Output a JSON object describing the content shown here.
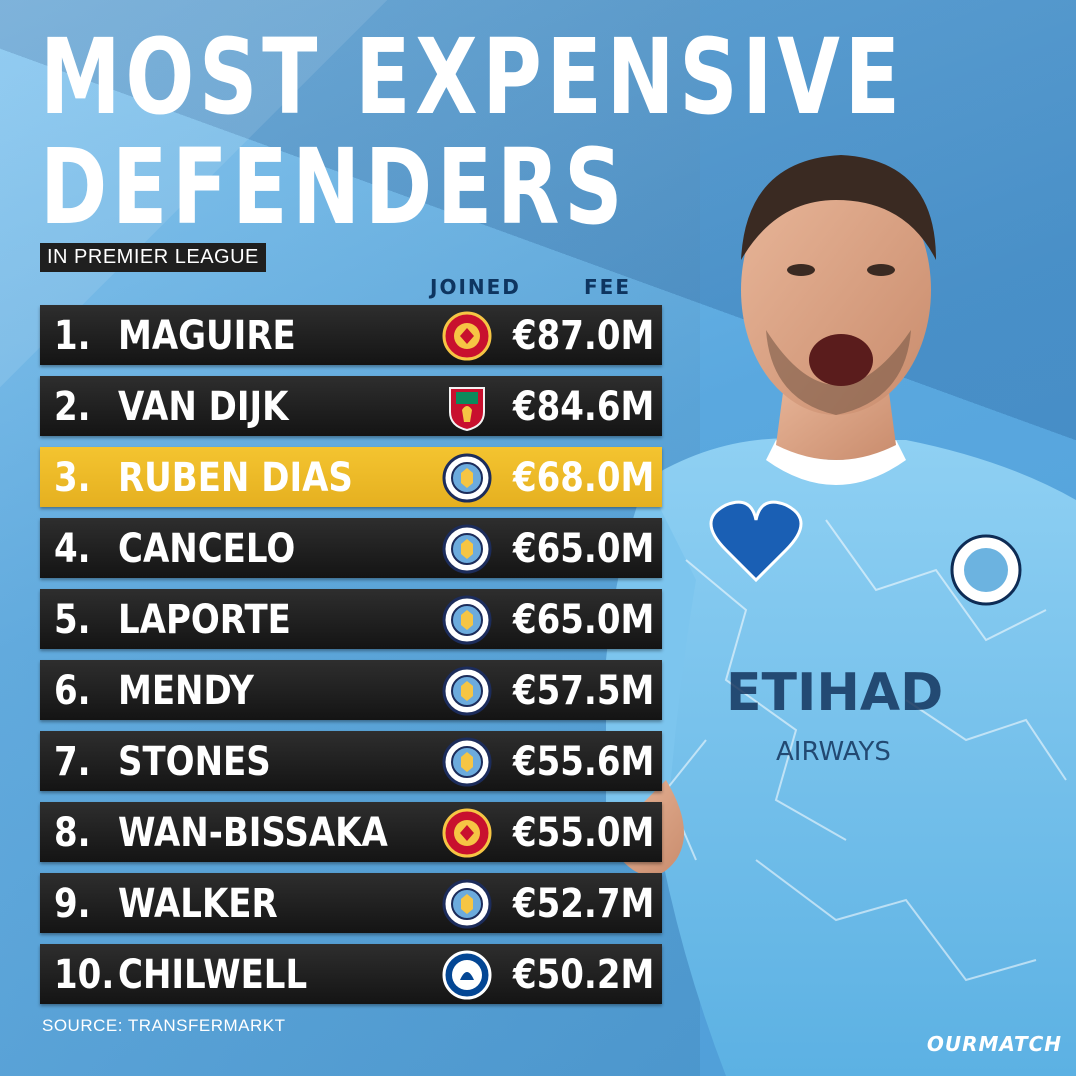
{
  "title": [
    "MOST EXPENSIVE",
    "DEFENDERS"
  ],
  "subtitle": "IN PREMIER LEAGUE",
  "columns": {
    "joined": "JOINED",
    "fee": "FEE"
  },
  "rows": [
    {
      "rank": "1.",
      "name": "MAGUIRE",
      "club": "manchester-united-crest",
      "fee": "€87.0M",
      "highlight": false
    },
    {
      "rank": "2.",
      "name": "VAN DIJK",
      "club": "liverpool-crest",
      "fee": "€84.6M",
      "highlight": false
    },
    {
      "rank": "3.",
      "name": "RUBEN DIAS",
      "club": "manchester-city-crest",
      "fee": "€68.0M",
      "highlight": true
    },
    {
      "rank": "4.",
      "name": "CANCELO",
      "club": "manchester-city-crest",
      "fee": "€65.0M",
      "highlight": false
    },
    {
      "rank": "5.",
      "name": "LAPORTE",
      "club": "manchester-city-crest",
      "fee": "€65.0M",
      "highlight": false
    },
    {
      "rank": "6.",
      "name": "MENDY",
      "club": "manchester-city-crest",
      "fee": "€57.5M",
      "highlight": false
    },
    {
      "rank": "7.",
      "name": "STONES",
      "club": "manchester-city-crest",
      "fee": "€55.6M",
      "highlight": false
    },
    {
      "rank": "8.",
      "name": "WAN-BISSAKA",
      "club": "manchester-united-crest",
      "fee": "€55.0M",
      "highlight": false
    },
    {
      "rank": "9.",
      "name": "WALKER",
      "club": "manchester-city-crest",
      "fee": "€52.7M",
      "highlight": false
    },
    {
      "rank": "10.",
      "name": "CHILWELL",
      "club": "chelsea-crest",
      "fee": "€50.2M",
      "highlight": false
    }
  ],
  "source": "SOURCE:  TRANSFERMARKT",
  "brand": "OURMATCH",
  "colors": {
    "background": "#6fb6e6",
    "row": "#1e1e1e",
    "highlight": "#f1bf2a",
    "header_text": "#0e3560"
  }
}
